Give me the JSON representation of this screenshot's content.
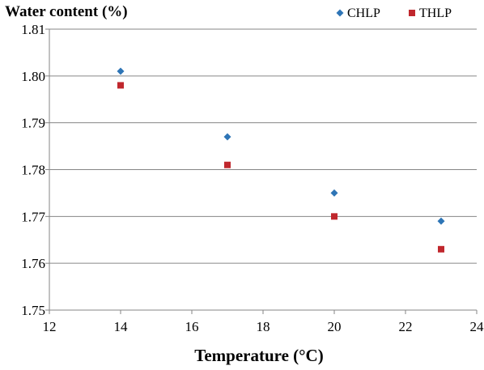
{
  "chart_data": {
    "type": "scatter",
    "title": "",
    "ylabel": "Water content (%)",
    "xlabel": "Temperature (°C)",
    "xlim": [
      12,
      24
    ],
    "ylim": [
      1.75,
      1.81
    ],
    "x_ticks": [
      "12",
      "14",
      "16",
      "18",
      "20",
      "22",
      "24"
    ],
    "y_ticks": [
      "1.75",
      "1.76",
      "1.77",
      "1.78",
      "1.79",
      "1.80",
      "1.81"
    ],
    "x_tick_values": [
      12,
      14,
      16,
      18,
      20,
      22,
      24
    ],
    "y_tick_values": [
      1.75,
      1.76,
      1.77,
      1.78,
      1.79,
      1.8,
      1.81
    ],
    "grid": "horizontal",
    "legend_position": "top-right",
    "series": [
      {
        "name": "CHLP",
        "marker": "diamond",
        "color": "#2e75b6",
        "x": [
          14,
          17,
          20,
          23
        ],
        "y": [
          1.801,
          1.787,
          1.775,
          1.769
        ]
      },
      {
        "name": "THLP",
        "marker": "square",
        "color": "#c0272d",
        "x": [
          14,
          17,
          20,
          23
        ],
        "y": [
          1.798,
          1.781,
          1.77,
          1.763
        ]
      }
    ]
  }
}
